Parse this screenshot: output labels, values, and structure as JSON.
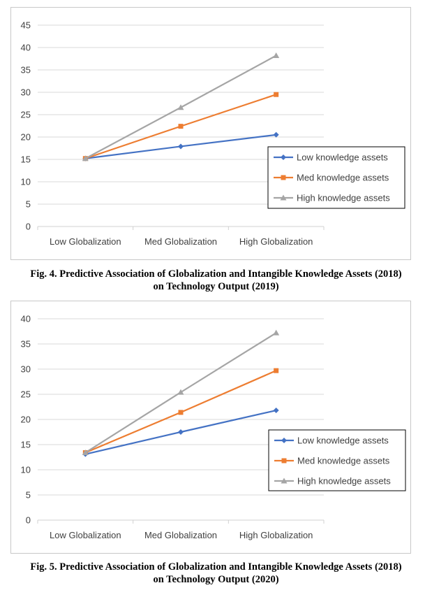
{
  "chart_data": [
    {
      "type": "line",
      "categories": [
        "Low Globalization",
        "Med Globalization",
        "High Globalization"
      ],
      "ylim": [
        0,
        45
      ],
      "yticks": [
        0,
        5,
        10,
        15,
        20,
        25,
        30,
        35,
        40,
        45
      ],
      "grid": true,
      "legend": "right",
      "series": [
        {
          "name": "Low knowledge assets",
          "values": [
            15.2,
            17.9,
            20.5
          ],
          "color": "#4472C4",
          "marker": "diamond"
        },
        {
          "name": "Med knowledge assets",
          "values": [
            15.2,
            22.4,
            29.5
          ],
          "color": "#ED7D31",
          "marker": "square"
        },
        {
          "name": "High knowledge assets",
          "values": [
            15.2,
            26.6,
            38.2
          ],
          "color": "#A5A5A5",
          "marker": "triangle"
        }
      ],
      "caption": [
        "Fig. 4. Predictive Association of Globalization and Intangible Knowledge Assets (2018)",
        "on Technology Output (2019)"
      ]
    },
    {
      "type": "line",
      "categories": [
        "Low Globalization",
        "Med Globalization",
        "High Globalization"
      ],
      "ylim": [
        0,
        40
      ],
      "yticks": [
        0,
        5,
        10,
        15,
        20,
        25,
        30,
        35,
        40
      ],
      "grid": true,
      "legend": "right",
      "series": [
        {
          "name": "Low knowledge assets",
          "values": [
            13.1,
            17.5,
            21.8
          ],
          "color": "#4472C4",
          "marker": "diamond"
        },
        {
          "name": "Med knowledge assets",
          "values": [
            13.4,
            21.4,
            29.7
          ],
          "color": "#ED7D31",
          "marker": "square"
        },
        {
          "name": "High knowledge assets",
          "values": [
            13.4,
            25.4,
            37.2
          ],
          "color": "#A5A5A5",
          "marker": "triangle"
        }
      ],
      "caption": [
        "Fig. 5. Predictive Association of Globalization and Intangible Knowledge Assets (2018)",
        "on Technology Output (2020)"
      ]
    }
  ]
}
